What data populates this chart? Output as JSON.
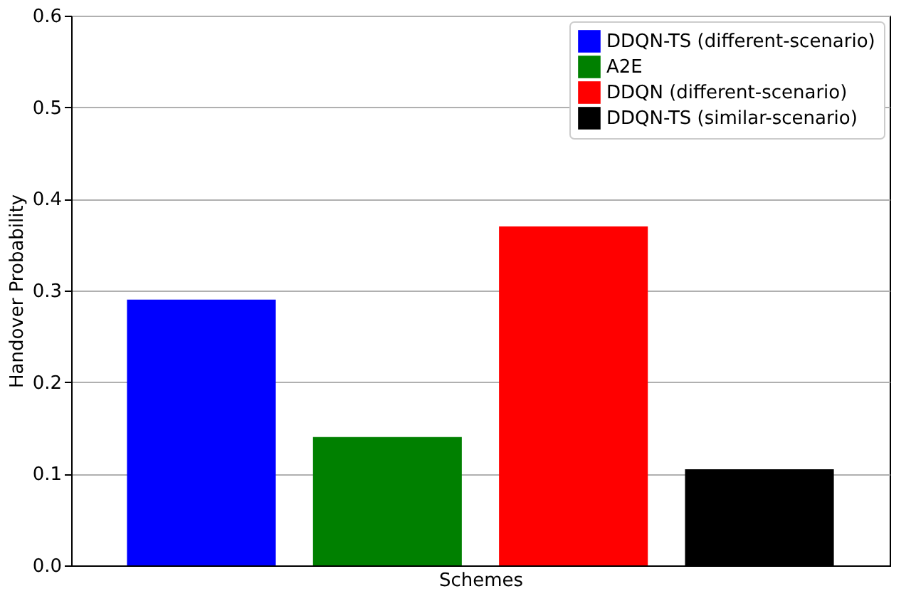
{
  "chart_data": {
    "type": "bar",
    "xlabel": "Schemes",
    "ylabel": "Handover Probability",
    "categories": [
      null,
      null,
      null,
      null
    ],
    "series": [
      {
        "name": "DDQN-TS (different-scenario)",
        "color": "#0000ff",
        "values": [
          0.29,
          null,
          null,
          null
        ]
      },
      {
        "name": "A2E",
        "color": "#008000",
        "values": [
          null,
          0.14,
          null,
          null
        ]
      },
      {
        "name": "DDQN (different-scenario)",
        "color": "#ff0000",
        "values": [
          null,
          null,
          0.37,
          null
        ]
      },
      {
        "name": "DDQN-TS (similar-scenario)",
        "color": "#000000",
        "values": [
          null,
          null,
          null,
          0.105
        ]
      }
    ],
    "ylim": [
      0,
      0.6
    ],
    "yticks": [
      {
        "value": 0,
        "label": "0.0"
      },
      0.1,
      0.2,
      0.3,
      0.4,
      0.5,
      0.6
    ],
    "grid": "y",
    "legend": "top right",
    "tick_labels": "y"
  }
}
